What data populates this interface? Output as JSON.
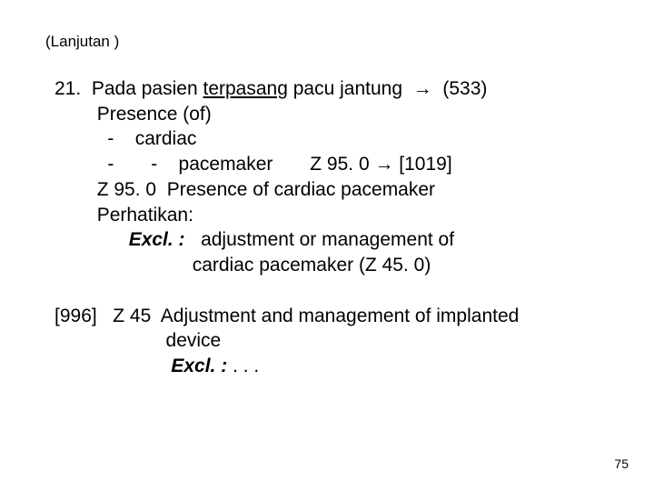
{
  "header": "(Lanjutan )",
  "item": {
    "num": "21.",
    "l1a": "Pada pasien ",
    "l1u": "terpasang",
    "l1b": " pacu jantung  ",
    "l1arr": "→",
    "l1c": "  (533)",
    "l2": "Presence (of)",
    "l3": "-    cardiac",
    "l4a": "-       -    pacemaker       Z 95. 0 ",
    "l4arr": "→",
    "l4b": " [1019]",
    "l5": "Z 95. 0  Presence of cardiac pacemaker",
    "l6": "Perhatikan:",
    "l7a": "Excl. :",
    "l7b": "   adjustment or management of",
    "l8": "cardiac pacemaker (Z 45. 0)"
  },
  "sec": {
    "s1a": "[996]",
    "s1b": "   Z 45  Adjustment and management of implanted",
    "s2": "device",
    "s3a": "Excl. :",
    "s3b": " . . ."
  },
  "pagenum": "75",
  "colors": {
    "text": "#000000",
    "bg": "#ffffff"
  },
  "font": {
    "header_size": 17,
    "body_size": 21,
    "pagenum_size": 14,
    "weight_bold": 700
  }
}
